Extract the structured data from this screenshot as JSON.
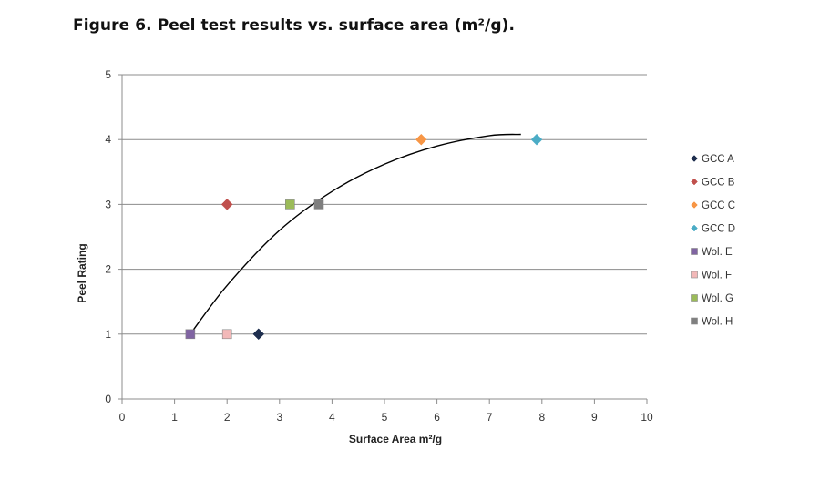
{
  "figure": {
    "title": "Figure 6. Peel test results vs. surface area (m²/g)."
  },
  "chart_data": {
    "type": "scatter",
    "xlabel": "Surface Area m²/g",
    "ylabel": "Peel Rating",
    "xlim": [
      0,
      10
    ],
    "ylim": [
      0,
      5
    ],
    "x_ticks": [
      0,
      1,
      2,
      3,
      4,
      5,
      6,
      7,
      8,
      9,
      10
    ],
    "y_ticks": [
      0,
      1,
      2,
      3,
      4,
      5
    ],
    "grid": "horizontal",
    "legend_position": "right",
    "trendline": {
      "type": "polynomial",
      "color": "#000000",
      "points": [
        [
          1.3,
          1.0
        ],
        [
          2.0,
          1.75
        ],
        [
          3.0,
          2.6
        ],
        [
          4.0,
          3.2
        ],
        [
          5.0,
          3.62
        ],
        [
          6.0,
          3.9
        ],
        [
          7.0,
          4.06
        ],
        [
          7.6,
          4.08
        ]
      ]
    },
    "series": [
      {
        "name": "GCC A",
        "marker": "diamond",
        "color": "#1f2f4f",
        "x": 2.6,
        "y": 1
      },
      {
        "name": "GCC B",
        "marker": "diamond",
        "color": "#c0504d",
        "x": 2.0,
        "y": 3
      },
      {
        "name": "GCC C",
        "marker": "diamond",
        "color": "#f79646",
        "x": 5.7,
        "y": 4
      },
      {
        "name": "GCC D",
        "marker": "diamond",
        "color": "#4bacc6",
        "x": 7.9,
        "y": 4
      },
      {
        "name": "Wol. E",
        "marker": "square",
        "color": "#8064a2",
        "x": 1.3,
        "y": 1
      },
      {
        "name": "Wol. F",
        "marker": "square",
        "color": "#f2b8b8",
        "x": 2.0,
        "y": 1
      },
      {
        "name": "Wol. G",
        "marker": "square",
        "color": "#9bbb59",
        "x": 3.2,
        "y": 3
      },
      {
        "name": "Wol. H",
        "marker": "square",
        "color": "#7f7f7f",
        "x": 3.75,
        "y": 3
      }
    ]
  }
}
